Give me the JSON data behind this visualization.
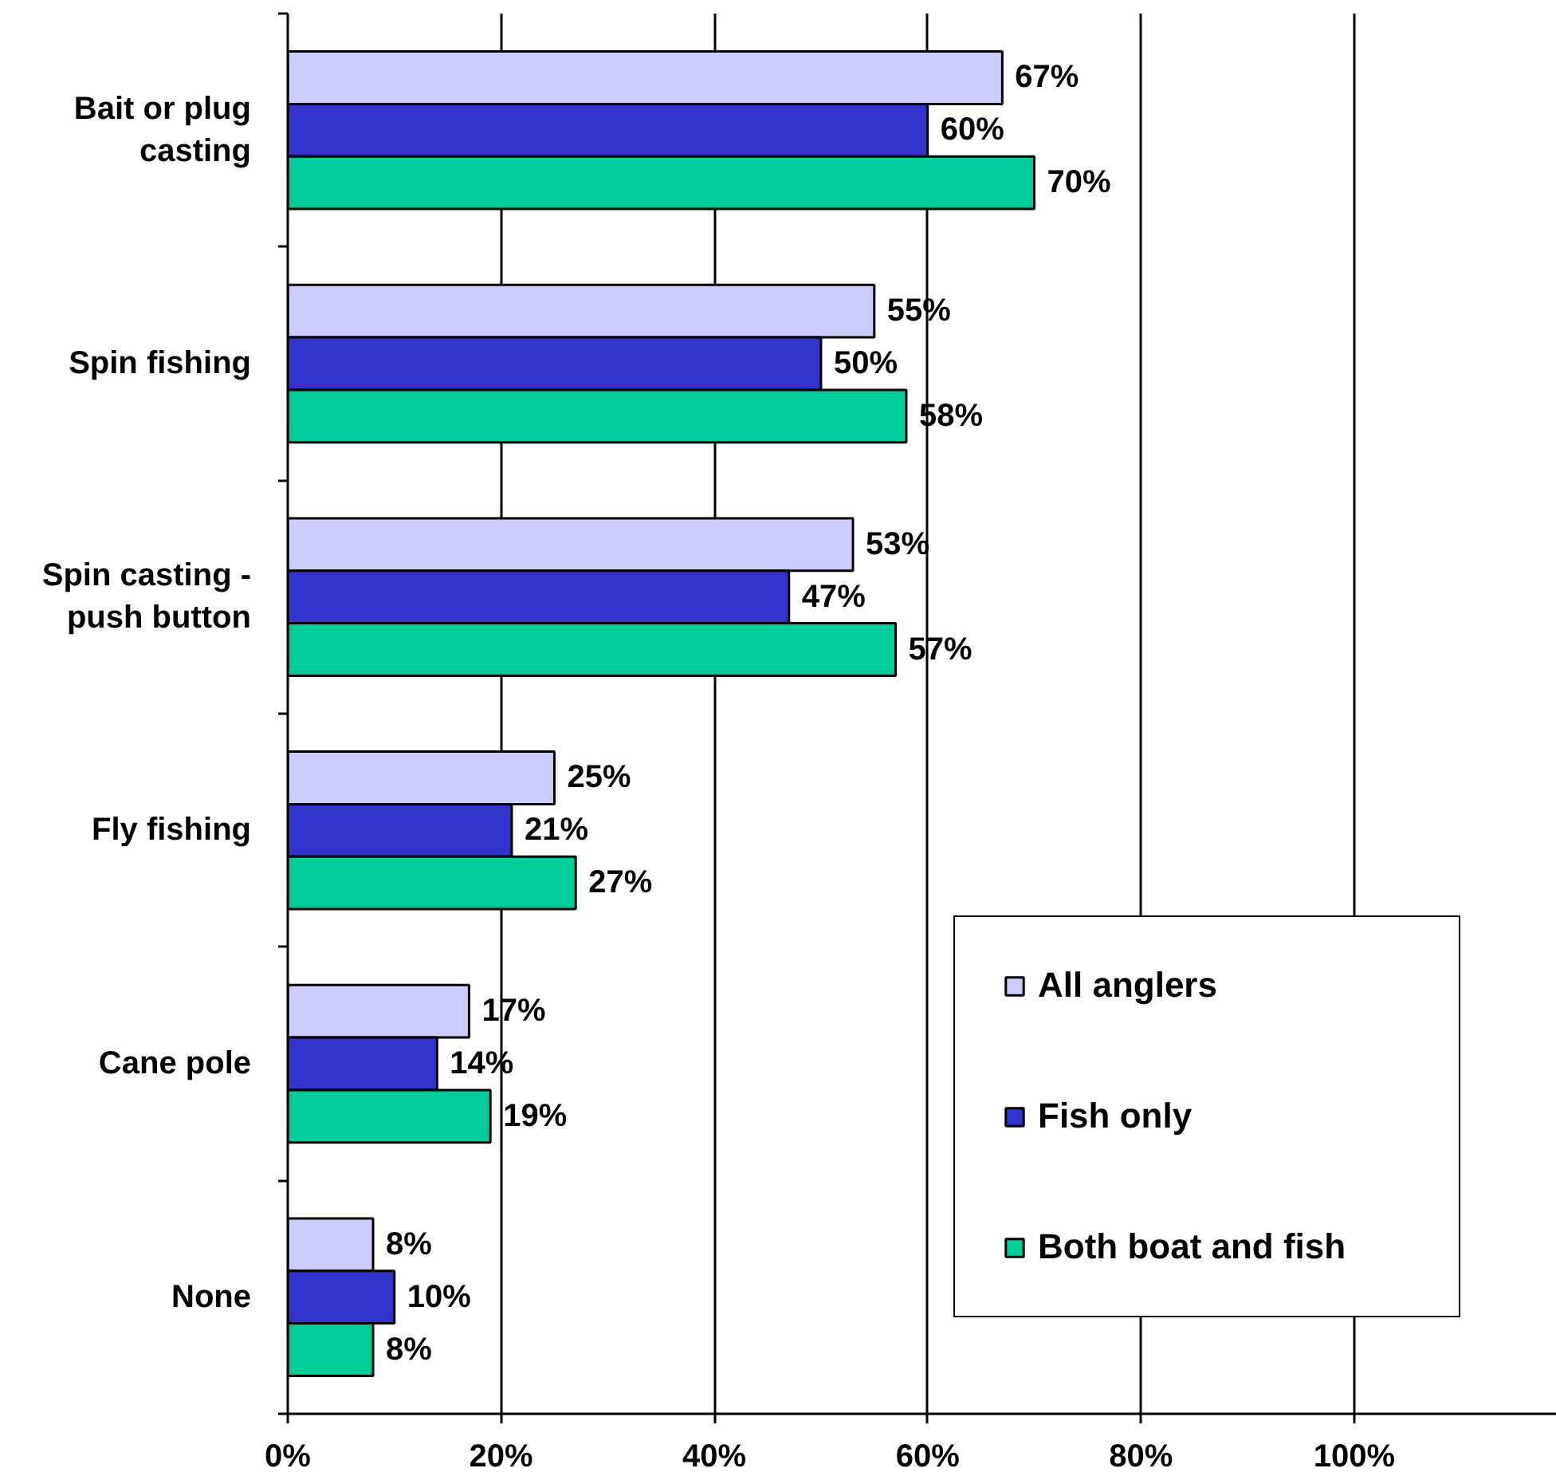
{
  "chart_data": {
    "type": "bar",
    "orientation": "horizontal",
    "categories": [
      "Bait or plug casting",
      "Spin fishing",
      "Spin casting - push button",
      "Fly fishing",
      "Cane pole",
      "None"
    ],
    "series": [
      {
        "name": "All anglers",
        "color": "#ccccff",
        "values": [
          67,
          55,
          53,
          25,
          17,
          8
        ],
        "value_labels": [
          "67%",
          "55%",
          "53%",
          "25%",
          "17%",
          "8%"
        ]
      },
      {
        "name": "Fish only",
        "color": "#3333cc",
        "values": [
          60,
          50,
          47,
          21,
          14,
          10
        ],
        "value_labels": [
          "60%",
          "50%",
          "47%",
          "21%",
          "14%",
          "10%"
        ]
      },
      {
        "name": "Both boat and fish",
        "color": "#00cc99",
        "values": [
          70,
          58,
          57,
          27,
          19,
          8
        ],
        "value_labels": [
          "70%",
          "58%",
          "57%",
          "27%",
          "19%",
          "8%"
        ]
      }
    ],
    "xlim": [
      0,
      119
    ],
    "xticks": [
      {
        "value": 0,
        "label": "0%"
      },
      {
        "value": 20,
        "label": "20%"
      },
      {
        "value": 40,
        "label": "40%"
      },
      {
        "value": 60,
        "label": "60%"
      },
      {
        "value": 80,
        "label": "80%"
      },
      {
        "value": 100,
        "label": "100%"
      }
    ],
    "grid": "x",
    "legend": "bottom right"
  }
}
